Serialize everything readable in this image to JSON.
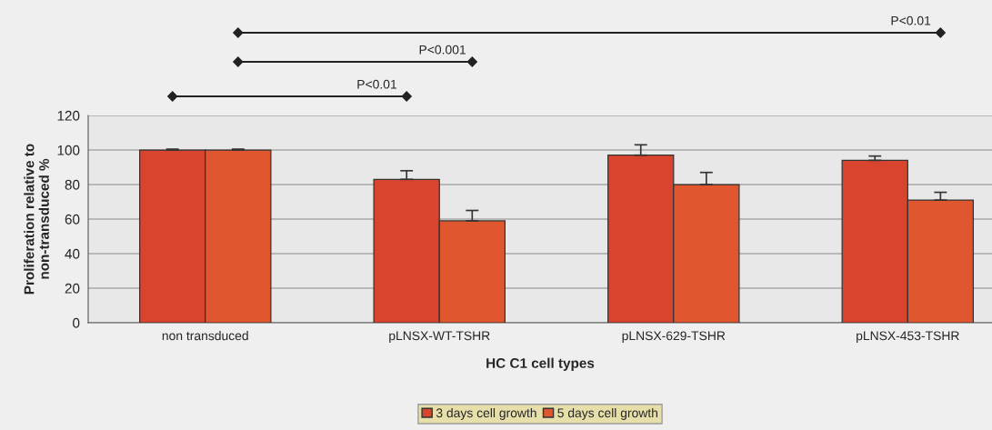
{
  "chart_data": {
    "type": "bar",
    "xlabel": "HC C1 cell types",
    "ylabel": "Proliferation relative to\nnon-transduced %",
    "categories": [
      "non transduced",
      "pLNSX-WT-TSHR",
      "pLNSX-629-TSHR",
      "pLNSX-453-TSHR"
    ],
    "series": [
      {
        "name": "3 days cell growth",
        "color": "#d8442e",
        "values": [
          100,
          83,
          97,
          94
        ],
        "errors": [
          0.5,
          5,
          6,
          2.5
        ]
      },
      {
        "name": "5 days cell growth",
        "color": "#e0562e",
        "values": [
          100,
          59,
          80,
          71
        ],
        "errors": [
          0.5,
          6,
          7,
          4.5
        ]
      }
    ],
    "ylim": [
      0,
      120
    ],
    "yticks": [
      0,
      20,
      40,
      60,
      80,
      100,
      120
    ],
    "grid": "y",
    "legend": "bottom",
    "annotations": [
      "P<0.01",
      "P<0.001",
      "P<0.01"
    ]
  }
}
